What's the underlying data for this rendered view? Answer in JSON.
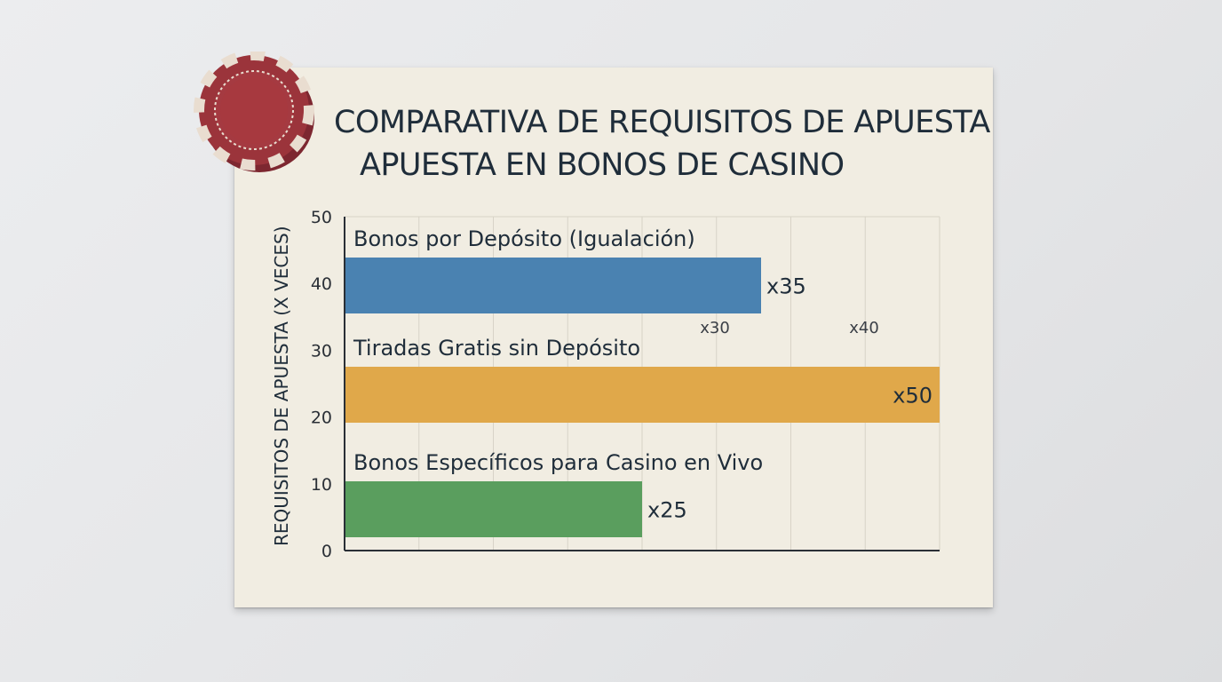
{
  "title_line1": "COMPARATIVA DE REQUISITOS DE APUESTA",
  "title_line2": "APUESTA EN BONOS DE CASINO",
  "chart_data": {
    "type": "bar",
    "orientation": "horizontal",
    "title": "COMPARATIVA DE REQUISITOS DE APUESTA APUESTA EN BONOS DE CASINO",
    "ylabel": "REQUISITOS DE APUESTA (X VECES)",
    "xlabel": "",
    "axis_ticks": [
      "0",
      "10",
      "20",
      "30",
      "40",
      "50"
    ],
    "xlim": [
      0,
      50
    ],
    "grid": true,
    "categories": [
      "Bonos por Depósito (Igualación)",
      "Tiradas Gratis sin Depósito",
      "Bonos Específicos para Casino en Vivo"
    ],
    "values": [
      35,
      50,
      25
    ],
    "data_labels": [
      "x35",
      "x50",
      "x25"
    ],
    "colors": [
      "#4a82b1",
      "#e0a84a",
      "#5a9e5e"
    ],
    "annotations": [
      "x30",
      "x40"
    ]
  }
}
